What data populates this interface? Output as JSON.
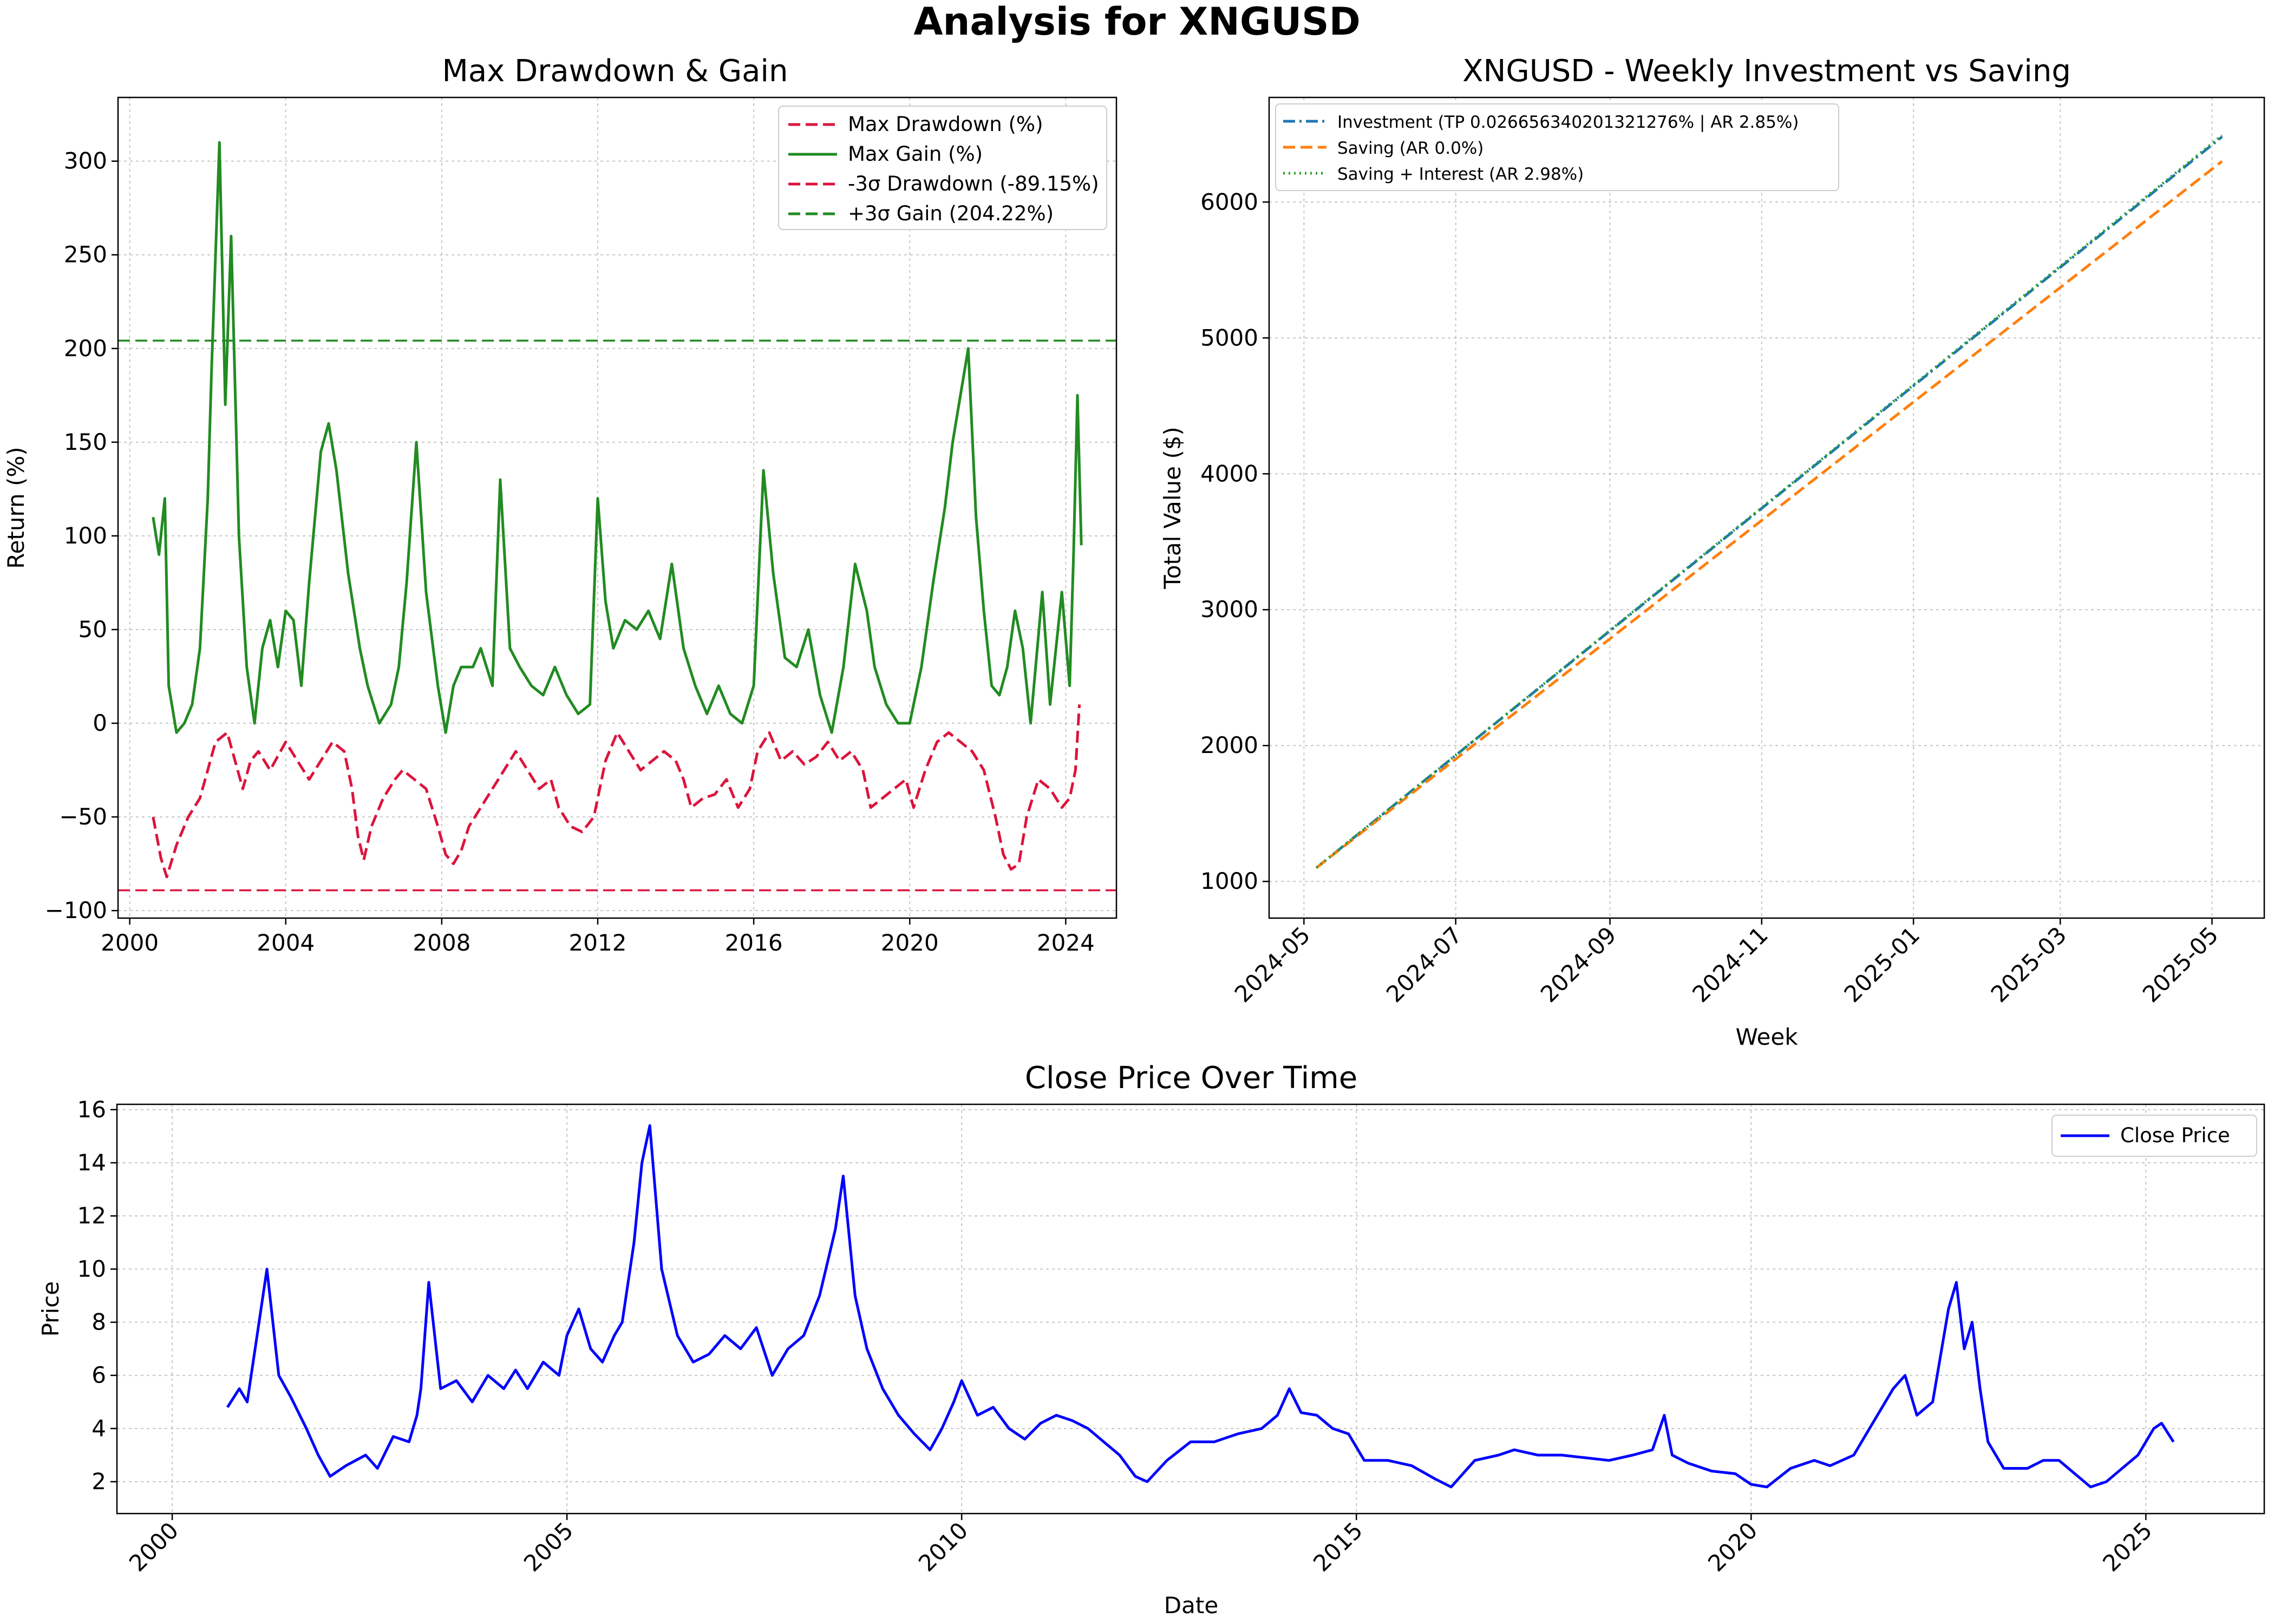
{
  "figure_title": "Analysis for XNGUSD",
  "chart_data": [
    {
      "type": "line",
      "title": "Max Drawdown & Gain",
      "xlabel": "",
      "ylabel": "Return (%)",
      "xlim": [
        1999.7,
        2025.3
      ],
      "ylim": [
        -104,
        334
      ],
      "xticks": [
        "2000",
        "2004",
        "2008",
        "2012",
        "2016",
        "2020",
        "2024"
      ],
      "yticks": [
        "−100",
        "−50",
        "0",
        "50",
        "100",
        "150",
        "200",
        "250",
        "300"
      ],
      "grid": true,
      "legend_position": "top-right",
      "series": [
        {
          "name": "Max Drawdown (%)",
          "color": "#dc143c",
          "style": "dashed",
          "x": [
            2000.6,
            2000.8,
            2000.95,
            2001.2,
            2001.5,
            2001.8,
            2002.0,
            2002.2,
            2002.5,
            2002.7,
            2002.9,
            2003.1,
            2003.3,
            2003.6,
            2004.0,
            2004.3,
            2004.6,
            2004.9,
            2005.2,
            2005.5,
            2005.7,
            2005.85,
            2006.0,
            2006.2,
            2006.5,
            2006.8,
            2007.0,
            2007.3,
            2007.6,
            2007.9,
            2008.1,
            2008.3,
            2008.5,
            2008.7,
            2009.0,
            2009.3,
            2009.6,
            2009.9,
            2010.2,
            2010.5,
            2010.8,
            2011.0,
            2011.3,
            2011.6,
            2011.9,
            2012.2,
            2012.5,
            2012.8,
            2013.1,
            2013.4,
            2013.7,
            2014.0,
            2014.2,
            2014.4,
            2014.7,
            2015.0,
            2015.3,
            2015.6,
            2015.9,
            2016.1,
            2016.4,
            2016.7,
            2017.0,
            2017.3,
            2017.6,
            2017.9,
            2018.2,
            2018.5,
            2018.8,
            2019.0,
            2019.3,
            2019.6,
            2019.9,
            2020.1,
            2020.4,
            2020.7,
            2021.0,
            2021.3,
            2021.6,
            2021.9,
            2022.2,
            2022.4,
            2022.6,
            2022.8,
            2023.0,
            2023.3,
            2023.6,
            2023.9,
            2024.1,
            2024.25,
            2024.35
          ],
          "y": [
            -50,
            -72,
            -82,
            -65,
            -50,
            -40,
            -25,
            -10,
            -5,
            -20,
            -35,
            -20,
            -15,
            -25,
            -10,
            -20,
            -30,
            -20,
            -10,
            -15,
            -35,
            -60,
            -73,
            -55,
            -40,
            -30,
            -25,
            -30,
            -35,
            -55,
            -70,
            -75,
            -68,
            -55,
            -45,
            -35,
            -25,
            -15,
            -25,
            -35,
            -30,
            -45,
            -55,
            -58,
            -50,
            -20,
            -5,
            -15,
            -25,
            -20,
            -15,
            -20,
            -30,
            -45,
            -40,
            -38,
            -30,
            -45,
            -35,
            -15,
            -5,
            -20,
            -15,
            -22,
            -18,
            -10,
            -20,
            -15,
            -25,
            -45,
            -40,
            -35,
            -30,
            -45,
            -25,
            -10,
            -5,
            -10,
            -15,
            -25,
            -50,
            -70,
            -78,
            -75,
            -50,
            -30,
            -35,
            -45,
            -40,
            -25,
            10
          ]
        },
        {
          "name": "Max Gain (%)",
          "color": "#228b22",
          "style": "solid",
          "x": [
            2000.6,
            2000.75,
            2000.9,
            2001.0,
            2001.2,
            2001.4,
            2001.6,
            2001.8,
            2002.0,
            2002.1,
            2002.3,
            2002.45,
            2002.6,
            2002.8,
            2003.0,
            2003.2,
            2003.4,
            2003.6,
            2003.8,
            2004.0,
            2004.2,
            2004.4,
            2004.6,
            2004.9,
            2005.1,
            2005.3,
            2005.6,
            2005.9,
            2006.1,
            2006.4,
            2006.7,
            2006.9,
            2007.1,
            2007.35,
            2007.6,
            2007.9,
            2008.1,
            2008.3,
            2008.5,
            2008.8,
            2009.0,
            2009.3,
            2009.5,
            2009.75,
            2010.0,
            2010.3,
            2010.6,
            2010.9,
            2011.2,
            2011.5,
            2011.8,
            2012.0,
            2012.2,
            2012.4,
            2012.7,
            2013.0,
            2013.3,
            2013.6,
            2013.9,
            2014.2,
            2014.5,
            2014.8,
            2015.1,
            2015.4,
            2015.7,
            2016.0,
            2016.25,
            2016.5,
            2016.8,
            2017.1,
            2017.4,
            2017.7,
            2018.0,
            2018.3,
            2018.6,
            2018.9,
            2019.1,
            2019.4,
            2019.7,
            2020.0,
            2020.3,
            2020.6,
            2020.9,
            2021.1,
            2021.3,
            2021.5,
            2021.7,
            2021.9,
            2022.1,
            2022.3,
            2022.5,
            2022.7,
            2022.9,
            2023.1,
            2023.4,
            2023.6,
            2023.9,
            2024.1,
            2024.2,
            2024.3,
            2024.4
          ],
          "y": [
            110,
            90,
            120,
            20,
            -5,
            0,
            10,
            40,
            120,
            190,
            310,
            170,
            260,
            100,
            30,
            0,
            40,
            55,
            30,
            60,
            55,
            20,
            75,
            145,
            160,
            135,
            80,
            40,
            20,
            0,
            10,
            30,
            75,
            150,
            70,
            20,
            -5,
            20,
            30,
            30,
            40,
            20,
            130,
            40,
            30,
            20,
            15,
            30,
            15,
            5,
            10,
            120,
            65,
            40,
            55,
            50,
            60,
            45,
            85,
            40,
            20,
            5,
            20,
            5,
            0,
            20,
            135,
            80,
            35,
            30,
            50,
            15,
            -5,
            30,
            85,
            60,
            30,
            10,
            0,
            0,
            30,
            75,
            115,
            150,
            175,
            200,
            110,
            60,
            20,
            15,
            30,
            60,
            40,
            0,
            70,
            10,
            70,
            20,
            90,
            175,
            95
          ]
        },
        {
          "name": "-3σ Drawdown (-89.15%)",
          "color": "#dc143c",
          "style": "dashed",
          "x": [
            1999.7,
            2025.3
          ],
          "y": [
            -89.15,
            -89.15
          ]
        },
        {
          "name": "+3σ Gain (204.22%)",
          "color": "#228b22",
          "style": "dashed",
          "x": [
            1999.7,
            2025.3
          ],
          "y": [
            204.22,
            204.22
          ]
        }
      ]
    },
    {
      "type": "line",
      "title": "XNGUSD - Weekly Investment vs Saving",
      "xlabel": "Week",
      "ylabel": "Total Value ($)",
      "xlim": [
        "2024-04-17",
        "2025-05-22"
      ],
      "ylim": [
        730,
        6770
      ],
      "xticks": [
        "2024-05",
        "2024-07",
        "2024-09",
        "2024-11",
        "2025-01",
        "2025-03",
        "2025-05"
      ],
      "yticks": [
        "1000",
        "2000",
        "3000",
        "4000",
        "5000",
        "6000"
      ],
      "grid": true,
      "legend_position": "top-left",
      "series": [
        {
          "name": "Investment (TP 0.026656340201321276% | AR 2.85%)",
          "color": "#1f77b4",
          "style": "dashdot",
          "x": [
            "2024-05-06",
            "2025-05-05"
          ],
          "y": [
            1100,
            6480
          ]
        },
        {
          "name": "Saving (AR 0.0%)",
          "color": "#ff7f0e",
          "style": "dashed",
          "x": [
            "2024-05-06",
            "2025-05-05"
          ],
          "y": [
            1100,
            6300
          ]
        },
        {
          "name": "Saving + Interest (AR 2.98%)",
          "color": "#2ca02c",
          "style": "dotted",
          "x": [
            "2024-05-06",
            "2025-05-05"
          ],
          "y": [
            1100,
            6490
          ]
        }
      ]
    },
    {
      "type": "line",
      "title": "Close Price Over Time",
      "xlabel": "Date",
      "ylabel": "Price",
      "xlim": [
        1999.3,
        2026.5
      ],
      "ylim": [
        0.8,
        16.2
      ],
      "xticks": [
        "2000",
        "2005",
        "2010",
        "2015",
        "2020",
        "2025"
      ],
      "yticks": [
        "2",
        "4",
        "6",
        "8",
        "10",
        "12",
        "14",
        "16"
      ],
      "grid": true,
      "legend_position": "top-right",
      "series": [
        {
          "name": "Close Price",
          "color": "#0000ff",
          "style": "solid",
          "x": [
            2000.7,
            2000.85,
            2000.95,
            2001.05,
            2001.2,
            2001.35,
            2001.5,
            2001.7,
            2001.85,
            2002.0,
            2002.2,
            2002.45,
            2002.6,
            2002.8,
            2003.0,
            2003.1,
            2003.15,
            2003.25,
            2003.4,
            2003.6,
            2003.8,
            2004.0,
            2004.2,
            2004.35,
            2004.5,
            2004.7,
            2004.9,
            2005.0,
            2005.15,
            2005.3,
            2005.45,
            2005.6,
            2005.7,
            2005.85,
            2005.95,
            2006.05,
            2006.2,
            2006.4,
            2006.6,
            2006.8,
            2007.0,
            2007.2,
            2007.4,
            2007.6,
            2007.8,
            2008.0,
            2008.2,
            2008.4,
            2008.5,
            2008.65,
            2008.8,
            2009.0,
            2009.2,
            2009.4,
            2009.6,
            2009.75,
            2009.9,
            2010.0,
            2010.2,
            2010.4,
            2010.6,
            2010.8,
            2011.0,
            2011.2,
            2011.4,
            2011.6,
            2011.8,
            2012.0,
            2012.2,
            2012.35,
            2012.6,
            2012.9,
            2013.2,
            2013.5,
            2013.8,
            2014.0,
            2014.15,
            2014.3,
            2014.5,
            2014.7,
            2014.9,
            2015.1,
            2015.4,
            2015.7,
            2016.0,
            2016.2,
            2016.5,
            2016.8,
            2017.0,
            2017.3,
            2017.6,
            2017.9,
            2018.2,
            2018.5,
            2018.75,
            2018.9,
            2019.0,
            2019.2,
            2019.5,
            2019.8,
            2020.0,
            2020.2,
            2020.5,
            2020.8,
            2021.0,
            2021.3,
            2021.6,
            2021.8,
            2021.95,
            2022.1,
            2022.3,
            2022.5,
            2022.6,
            2022.7,
            2022.8,
            2022.9,
            2023.0,
            2023.2,
            2023.5,
            2023.7,
            2023.9,
            2024.1,
            2024.3,
            2024.5,
            2024.7,
            2024.9,
            2025.0,
            2025.1,
            2025.2,
            2025.35
          ],
          "y": [
            4.8,
            5.5,
            5.0,
            7.0,
            10.0,
            6.0,
            5.2,
            4.0,
            3.0,
            2.2,
            2.6,
            3.0,
            2.5,
            3.7,
            3.5,
            4.5,
            5.5,
            9.5,
            5.5,
            5.8,
            5.0,
            6.0,
            5.5,
            6.2,
            5.5,
            6.5,
            6.0,
            7.5,
            8.5,
            7.0,
            6.5,
            7.5,
            8.0,
            11.0,
            14.0,
            15.4,
            10.0,
            7.5,
            6.5,
            6.8,
            7.5,
            7.0,
            7.8,
            6.0,
            7.0,
            7.5,
            9.0,
            11.5,
            13.5,
            9.0,
            7.0,
            5.5,
            4.5,
            3.8,
            3.2,
            4.0,
            5.0,
            5.8,
            4.5,
            4.8,
            4.0,
            3.6,
            4.2,
            4.5,
            4.3,
            4.0,
            3.5,
            3.0,
            2.2,
            2.0,
            2.8,
            3.5,
            3.5,
            3.8,
            4.0,
            4.5,
            5.5,
            4.6,
            4.5,
            4.0,
            3.8,
            2.8,
            2.8,
            2.6,
            2.1,
            1.8,
            2.8,
            3.0,
            3.2,
            3.0,
            3.0,
            2.9,
            2.8,
            3.0,
            3.2,
            4.5,
            3.0,
            2.7,
            2.4,
            2.3,
            1.9,
            1.8,
            2.5,
            2.8,
            2.6,
            3.0,
            4.5,
            5.5,
            6.0,
            4.5,
            5.0,
            8.5,
            9.5,
            7.0,
            8.0,
            5.5,
            3.5,
            2.5,
            2.5,
            2.8,
            2.8,
            2.3,
            1.8,
            2.0,
            2.5,
            3.0,
            3.5,
            4.0,
            4.2,
            3.5
          ]
        }
      ]
    }
  ]
}
